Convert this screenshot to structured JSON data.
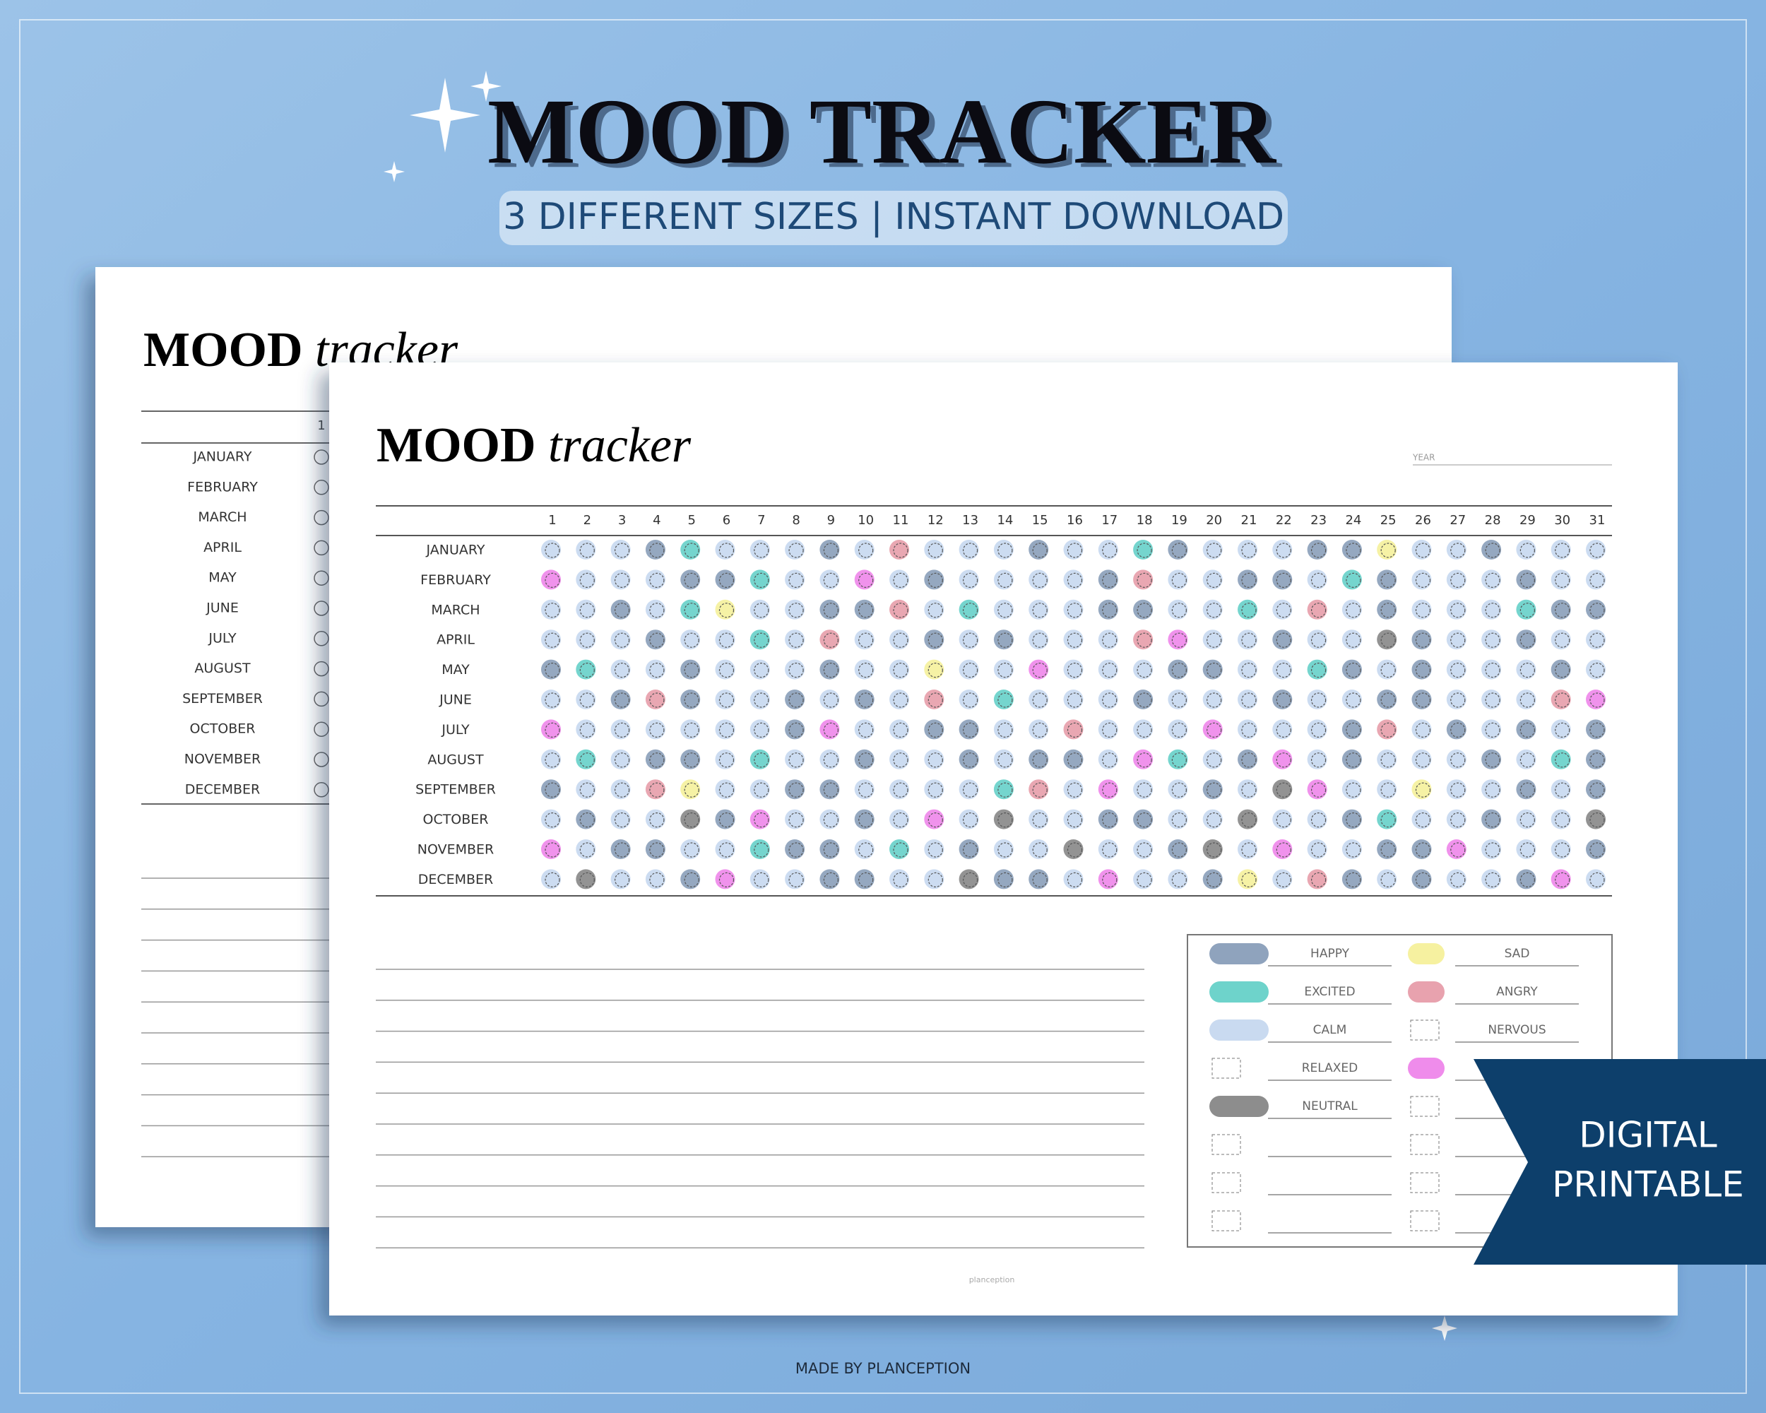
{
  "header": {
    "title": "MOOD TRACKER",
    "subtitle": "3 DIFFERENT SIZES | INSTANT DOWNLOAD"
  },
  "back_page": {
    "title_bold": "MOOD",
    "title_italic": "tracker",
    "day": "1",
    "months": [
      "JANUARY",
      "FEBRUARY",
      "MARCH",
      "APRIL",
      "MAY",
      "JUNE",
      "JULY",
      "AUGUST",
      "SEPTEMBER",
      "OCTOBER",
      "NOVEMBER",
      "DECEMBER"
    ]
  },
  "front_page": {
    "title_bold": "MOOD",
    "title_italic": "tracker",
    "year_label": "YEAR",
    "days": [
      "1",
      "2",
      "3",
      "4",
      "5",
      "6",
      "7",
      "8",
      "9",
      "10",
      "11",
      "12",
      "13",
      "14",
      "15",
      "16",
      "17",
      "18",
      "19",
      "20",
      "21",
      "22",
      "23",
      "24",
      "25",
      "26",
      "27",
      "28",
      "29",
      "30",
      "31"
    ],
    "months": [
      "JANUARY",
      "FEBRUARY",
      "MARCH",
      "APRIL",
      "MAY",
      "JUNE",
      "JULY",
      "AUGUST",
      "SEPTEMBER",
      "OCTOBER",
      "NOVEMBER",
      "DECEMBER"
    ],
    "legend": [
      {
        "name": "HAPPY",
        "color": "#8fa3bd"
      },
      {
        "name": "EXCITED",
        "color": "#6ed3cb"
      },
      {
        "name": "CALM",
        "color": "#c9daf0"
      },
      {
        "name": "RELAXED",
        "color": null
      },
      {
        "name": "NEUTRAL",
        "color": "#8d8d8d"
      },
      {
        "name": "SAD",
        "color": "#f6f1a0"
      },
      {
        "name": "ANGRY",
        "color": "#e8a2ae"
      },
      {
        "name": "NERVOUS",
        "color": null
      },
      {
        "name": null,
        "color": "#ef8ceb"
      }
    ],
    "grid": [
      [
        2,
        2,
        2,
        0,
        1,
        2,
        2,
        2,
        0,
        2,
        6,
        2,
        2,
        2,
        0,
        2,
        2,
        1,
        0,
        2,
        2,
        2,
        0,
        0,
        5,
        2,
        2,
        0,
        2,
        2,
        2
      ],
      [
        8,
        2,
        2,
        2,
        0,
        0,
        1,
        2,
        2,
        8,
        2,
        0,
        2,
        2,
        2,
        2,
        0,
        6,
        2,
        2,
        0,
        0,
        2,
        1,
        0,
        2,
        2,
        2,
        0,
        2,
        2
      ],
      [
        2,
        2,
        0,
        2,
        1,
        5,
        2,
        2,
        0,
        0,
        6,
        2,
        1,
        2,
        2,
        2,
        0,
        0,
        2,
        2,
        1,
        2,
        6,
        2,
        0,
        2,
        2,
        2,
        1,
        0,
        0
      ],
      [
        2,
        2,
        2,
        0,
        2,
        2,
        1,
        2,
        6,
        2,
        2,
        0,
        2,
        0,
        2,
        2,
        2,
        6,
        8,
        2,
        2,
        0,
        2,
        2,
        4,
        0,
        2,
        2,
        0,
        2,
        2
      ],
      [
        0,
        1,
        2,
        2,
        0,
        2,
        2,
        2,
        0,
        2,
        2,
        5,
        2,
        2,
        8,
        2,
        2,
        2,
        0,
        0,
        2,
        2,
        1,
        0,
        2,
        0,
        2,
        2,
        2,
        0,
        2
      ],
      [
        2,
        2,
        0,
        6,
        0,
        2,
        2,
        0,
        2,
        0,
        2,
        6,
        2,
        1,
        2,
        2,
        2,
        0,
        2,
        2,
        2,
        0,
        2,
        2,
        0,
        0,
        2,
        2,
        2,
        6,
        8
      ],
      [
        8,
        2,
        2,
        2,
        2,
        2,
        2,
        0,
        8,
        2,
        2,
        0,
        0,
        2,
        2,
        6,
        2,
        2,
        2,
        8,
        2,
        2,
        2,
        0,
        6,
        2,
        0,
        2,
        0,
        2,
        0
      ],
      [
        2,
        1,
        2,
        0,
        0,
        2,
        1,
        2,
        2,
        0,
        2,
        2,
        0,
        2,
        0,
        0,
        2,
        8,
        1,
        2,
        0,
        8,
        2,
        0,
        2,
        2,
        2,
        0,
        2,
        1,
        0
      ],
      [
        0,
        2,
        2,
        6,
        5,
        2,
        2,
        0,
        0,
        2,
        2,
        2,
        2,
        1,
        6,
        2,
        8,
        2,
        2,
        0,
        2,
        4,
        8,
        2,
        2,
        5,
        2,
        2,
        0,
        2,
        0
      ],
      [
        2,
        0,
        2,
        2,
        4,
        0,
        8,
        2,
        2,
        0,
        2,
        8,
        2,
        4,
        2,
        2,
        0,
        0,
        2,
        2,
        4,
        2,
        2,
        0,
        1,
        2,
        2,
        0,
        2,
        2,
        4
      ],
      [
        8,
        2,
        0,
        0,
        2,
        2,
        1,
        0,
        0,
        2,
        1,
        2,
        0,
        2,
        2,
        4,
        2,
        2,
        0,
        4,
        2,
        8,
        2,
        2,
        0,
        0,
        8,
        2,
        2,
        2,
        0
      ],
      [
        2,
        4,
        2,
        2,
        0,
        8,
        2,
        2,
        0,
        0,
        2,
        2,
        4,
        0,
        0,
        2,
        8,
        2,
        2,
        0,
        5,
        2,
        6,
        0,
        2,
        0,
        2,
        2,
        0,
        8,
        2
      ]
    ],
    "footer": "planception"
  },
  "banner": {
    "line1": "DIGITAL",
    "line2": "PRINTABLE"
  },
  "footer": "MADE BY PLANCEPTION"
}
